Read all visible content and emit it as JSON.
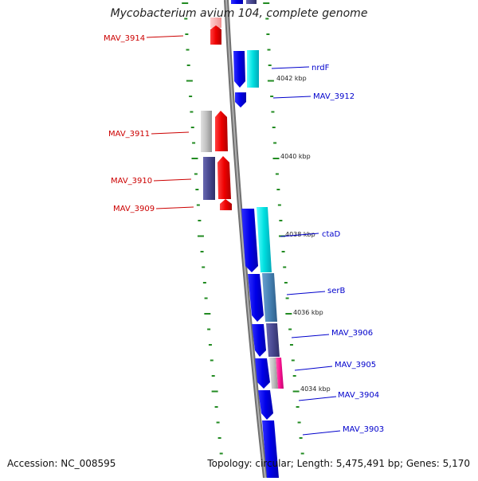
{
  "title": "Mycobacterium avium 104, complete genome",
  "footer": {
    "accession": "Accession: NC_008595",
    "summary": "Topology: circular; Length: 5,475,491 bp; Genes: 5,170"
  },
  "colors": {
    "forward_gene": "#0000ee",
    "reverse_gene": "#ee0000",
    "label_forward": "#0000cc",
    "label_reverse": "#cc0000",
    "backbone": "#808080",
    "tick": "#228b22",
    "cog_cyan": "#00e0e0",
    "cog_steel": "#4682b4",
    "cog_slate": "#484890",
    "cog_grey": "#c0c0c0",
    "cog_pink": "#ff1493"
  },
  "kbp_labels": [
    "4042 kbp",
    "4040 kbp",
    "4038 kbp",
    "4036 kbp",
    "4034 kbp"
  ],
  "genes_reverse": [
    {
      "label": "MAV_3914"
    },
    {
      "label": "MAV_3911"
    },
    {
      "label": "MAV_3910"
    },
    {
      "label": "MAV_3909"
    }
  ],
  "genes_forward": [
    {
      "label": "nrdF"
    },
    {
      "label": "MAV_3912"
    },
    {
      "label": "ctaD"
    },
    {
      "label": "serB"
    },
    {
      "label": "MAV_3906"
    },
    {
      "label": "MAV_3905"
    },
    {
      "label": "MAV_3904"
    },
    {
      "label": "MAV_3903"
    }
  ]
}
